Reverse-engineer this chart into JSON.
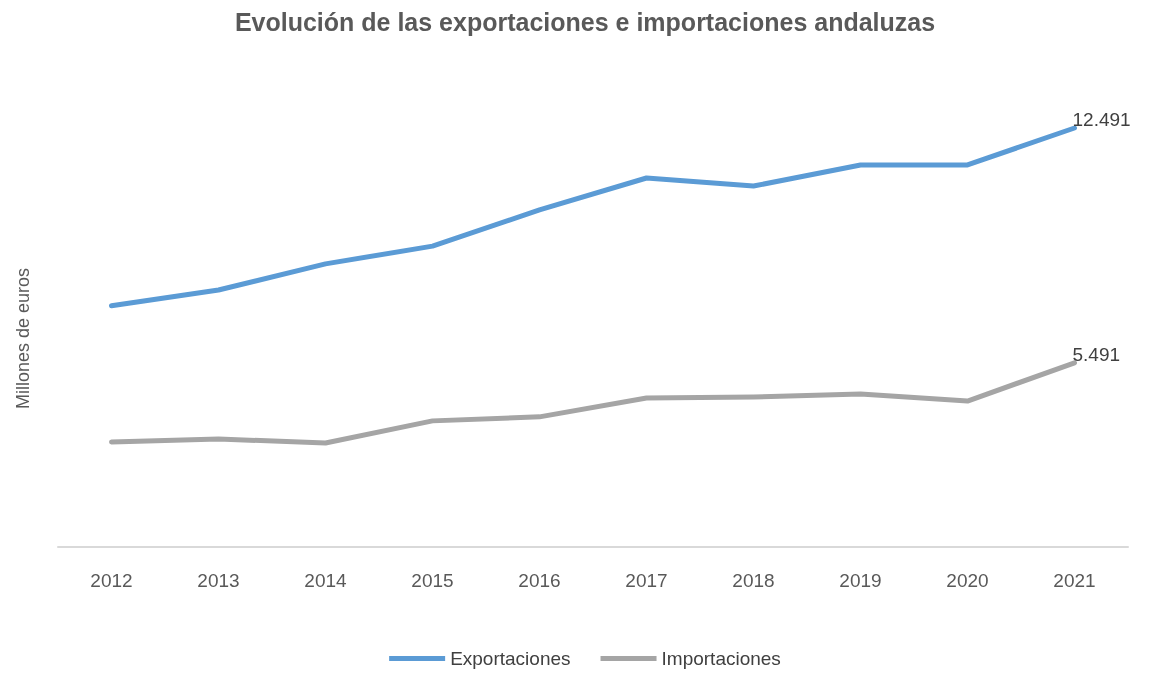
{
  "chart_data": {
    "type": "line",
    "title": "Evolución de las exportaciones e importaciones andaluzas",
    "ylabel": "Millones de euros",
    "categories": [
      "2012",
      "2013",
      "2014",
      "2015",
      "2016",
      "2017",
      "2018",
      "2019",
      "2020",
      "2021"
    ],
    "series": [
      {
        "name": "Exportaciones",
        "color": "#5b9bd5",
        "values": [
          7190,
          7660,
          8440,
          8970,
          10050,
          11000,
          10760,
          11390,
          11390,
          12491
        ],
        "value_labels": [
          null,
          null,
          null,
          null,
          null,
          null,
          null,
          null,
          null,
          "12.491"
        ]
      },
      {
        "name": "Importaciones",
        "color": "#a5a5a5",
        "values": [
          3130,
          3220,
          3100,
          3760,
          3880,
          4440,
          4470,
          4560,
          4350,
          5491
        ],
        "value_labels": [
          null,
          null,
          null,
          null,
          null,
          null,
          null,
          null,
          null,
          "5.491"
        ]
      }
    ],
    "legend": "bottom",
    "grid": false,
    "marker": "none",
    "line_style": "solid"
  }
}
